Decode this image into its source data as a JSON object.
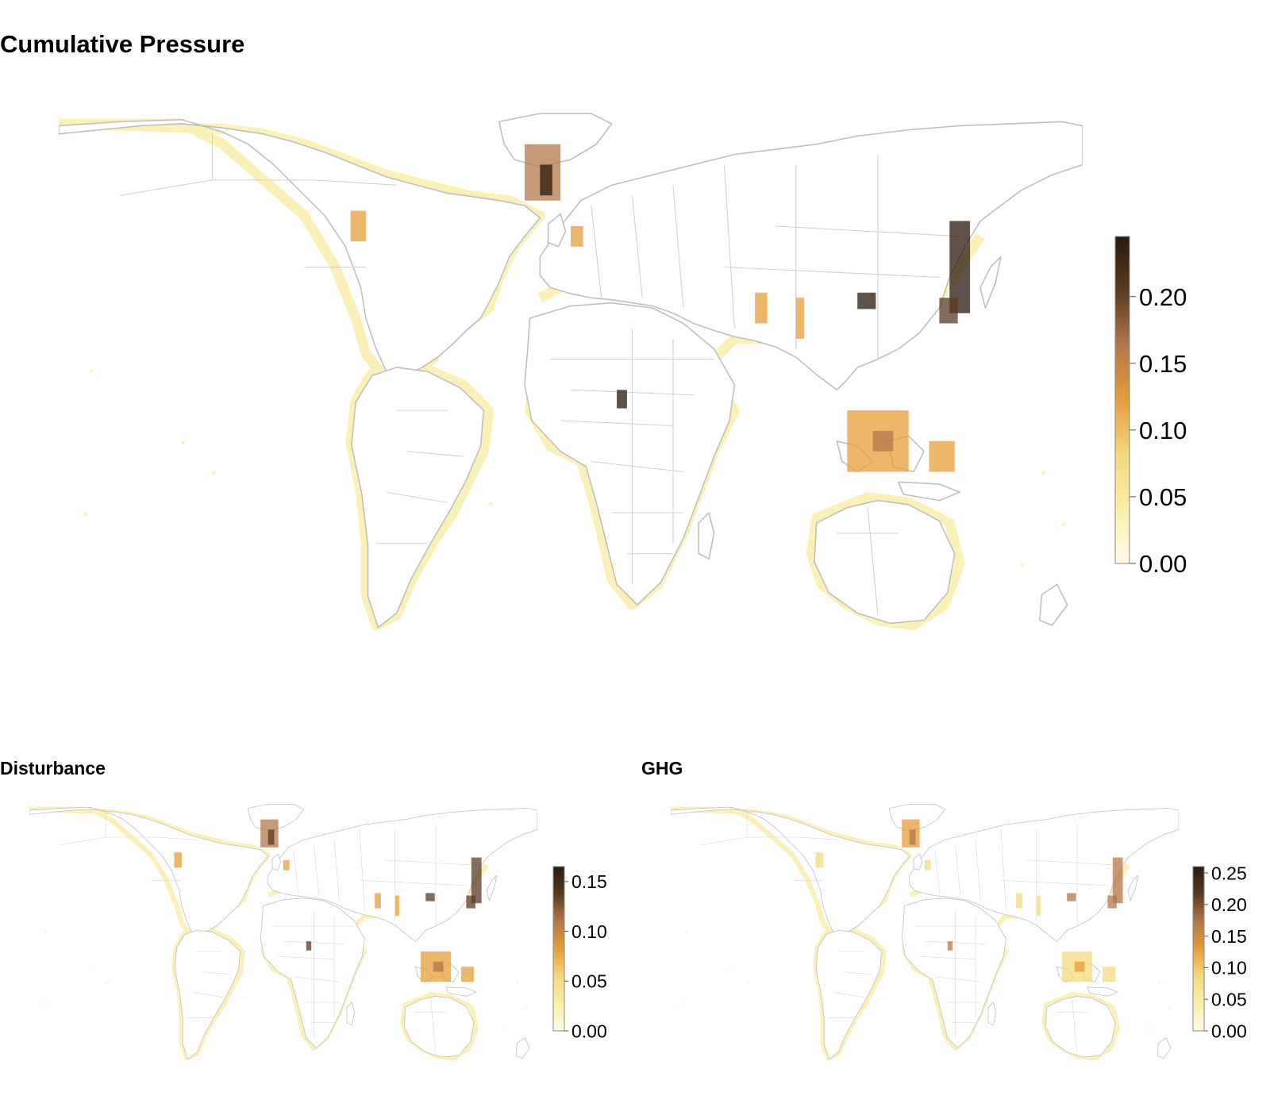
{
  "panels": {
    "main": {
      "title": "Cumulative Pressure",
      "legend": {
        "min": 0.0,
        "max": 0.245,
        "ticks": [
          "0.00",
          "0.05",
          "0.10",
          "0.15",
          "0.20"
        ]
      }
    },
    "disturbance": {
      "title": "Disturbance",
      "legend": {
        "min": 0.0,
        "max": 0.165,
        "ticks": [
          "0.00",
          "0.05",
          "0.10",
          "0.15"
        ]
      }
    },
    "ghg": {
      "title": "GHG",
      "legend": {
        "min": 0.0,
        "max": 0.26,
        "ticks": [
          "0.00",
          "0.05",
          "0.10",
          "0.15",
          "0.20",
          "0.25"
        ]
      }
    }
  },
  "colors": {
    "scale": [
      "#fffbe8",
      "#fbeea8",
      "#f4d880",
      "#e59d3a",
      "#b3774a",
      "#5a3b22",
      "#2a1a0c"
    ],
    "coast_buffer": "#fbefb0",
    "country_borders": "#bdbdbd",
    "background": "#ffffff"
  }
}
